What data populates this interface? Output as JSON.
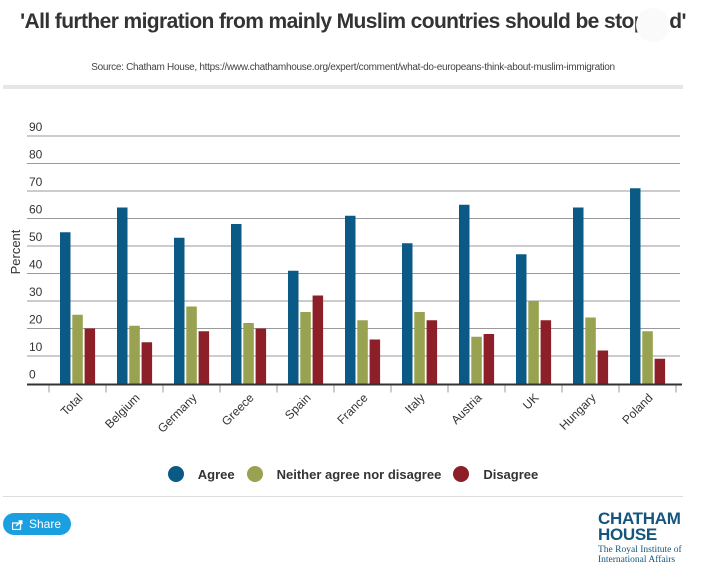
{
  "header": {
    "title": "'All further migration from mainly Muslim countries should be stopped'",
    "source": "Source: Chatham House, https://www.chathamhouse.org/expert/comment/what-do-europeans-think-about-muslim-immigration"
  },
  "colors": {
    "agree": "#0b5a86",
    "neither": "#98a250",
    "disagree": "#8d1f28"
  },
  "chart_data": {
    "type": "bar",
    "title": "'All further migration from mainly Muslim countries should be stopped'",
    "xlabel": "",
    "ylabel": "Percent",
    "ylim": [
      0,
      90
    ],
    "yticks": [
      0,
      10,
      20,
      30,
      40,
      50,
      60,
      70,
      80,
      90
    ],
    "grid": true,
    "legend_position": "bottom",
    "categories": [
      "Total",
      "Belgium",
      "Germany",
      "Greece",
      "Spain",
      "France",
      "Italy",
      "Austria",
      "UK",
      "Hungary",
      "Poland"
    ],
    "series": [
      {
        "name": "Agree",
        "key": "agree",
        "values": [
          55,
          64,
          53,
          58,
          41,
          61,
          51,
          65,
          47,
          64,
          71
        ]
      },
      {
        "name": "Neither agree nor disagree",
        "key": "neither",
        "values": [
          25,
          21,
          28,
          22,
          26,
          23,
          26,
          17,
          30,
          24,
          19
        ]
      },
      {
        "name": "Disagree",
        "key": "disagree",
        "values": [
          20,
          15,
          19,
          20,
          32,
          16,
          23,
          18,
          23,
          12,
          9
        ]
      }
    ]
  },
  "legend": {
    "items": [
      {
        "label": "Agree",
        "key": "agree"
      },
      {
        "label": "Neither agree nor disagree",
        "key": "neither"
      },
      {
        "label": "Disagree",
        "key": "disagree"
      }
    ]
  },
  "footer": {
    "share_label": "Share",
    "share_icon": "share-icon",
    "logo_line1": "CHATHAM",
    "logo_line2": "HOUSE",
    "logo_sub1": "The Royal Institute of",
    "logo_sub2": "International Affairs"
  }
}
